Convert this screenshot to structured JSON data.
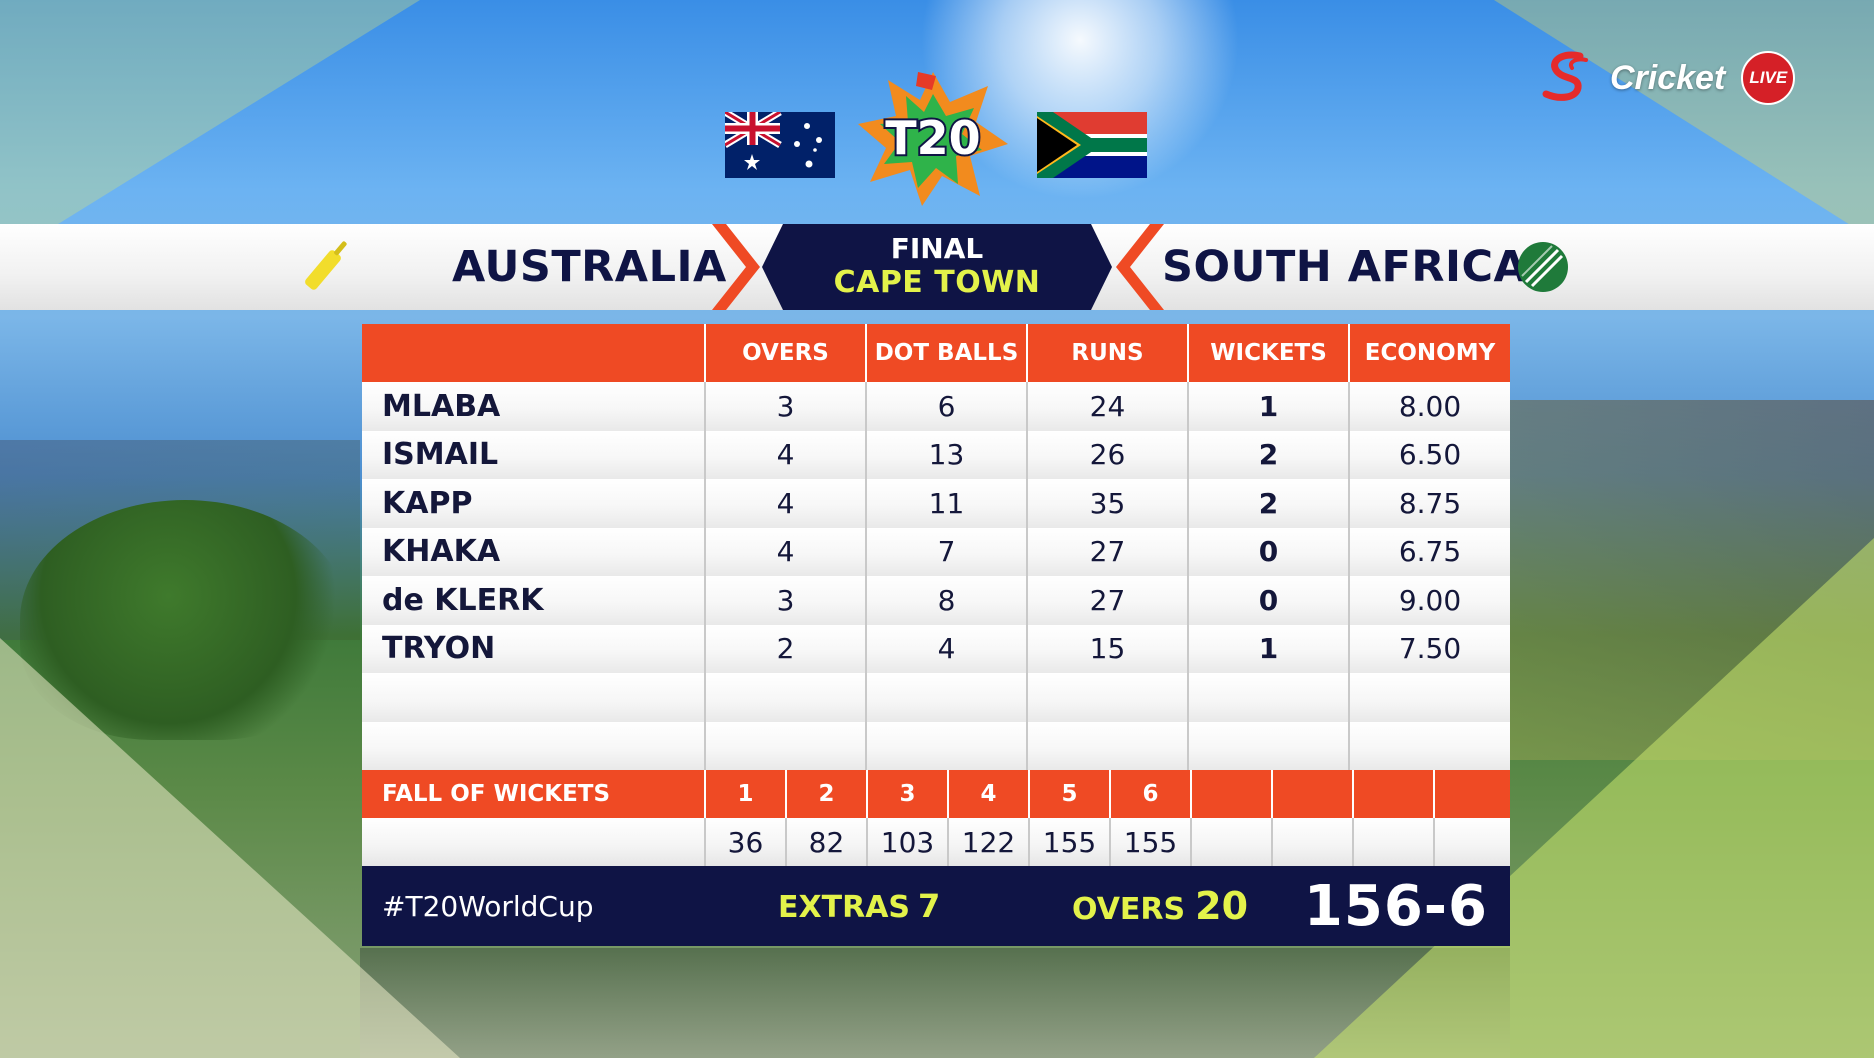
{
  "broadcaster": {
    "name": "Cricket",
    "live_label": "LIVE"
  },
  "match": {
    "stage": "FINAL",
    "venue": "CAPE TOWN",
    "batting_team": "AUSTRALIA",
    "bowling_team": "SOUTH AFRICA"
  },
  "table": {
    "headers": [
      "",
      "OVERS",
      "DOT BALLS",
      "RUNS",
      "WICKETS",
      "ECONOMY"
    ],
    "bowlers": [
      {
        "name": "MLABA",
        "overs": "3",
        "dot_balls": "6",
        "runs": "24",
        "wickets": "1",
        "economy": "8.00"
      },
      {
        "name": "ISMAIL",
        "overs": "4",
        "dot_balls": "13",
        "runs": "26",
        "wickets": "2",
        "economy": "6.50"
      },
      {
        "name": "KAPP",
        "overs": "4",
        "dot_balls": "11",
        "runs": "35",
        "wickets": "2",
        "economy": "8.75"
      },
      {
        "name": "KHAKA",
        "overs": "4",
        "dot_balls": "7",
        "runs": "27",
        "wickets": "0",
        "economy": "6.75"
      },
      {
        "name": "de KLERK",
        "overs": "3",
        "dot_balls": "8",
        "runs": "27",
        "wickets": "0",
        "economy": "9.00"
      },
      {
        "name": "TRYON",
        "overs": "2",
        "dot_balls": "4",
        "runs": "15",
        "wickets": "1",
        "economy": "7.50"
      },
      {
        "name": "",
        "overs": "",
        "dot_balls": "",
        "runs": "",
        "wickets": "",
        "economy": ""
      },
      {
        "name": "",
        "overs": "",
        "dot_balls": "",
        "runs": "",
        "wickets": "",
        "economy": ""
      }
    ]
  },
  "fall_of_wickets": {
    "label": "FALL OF WICKETS",
    "numbers": [
      "1",
      "2",
      "3",
      "4",
      "5",
      "6",
      "",
      "",
      "",
      ""
    ],
    "scores": [
      "36",
      "82",
      "103",
      "122",
      "155",
      "155",
      "",
      "",
      "",
      ""
    ]
  },
  "footer": {
    "hashtag": "#T20WorldCup",
    "extras_label": "EXTRAS",
    "extras_value": "7",
    "overs_label": "OVERS",
    "overs_value": "20",
    "total": "156-6"
  },
  "colors": {
    "navy": "#0f1445",
    "orange": "#ef4a24",
    "yellow": "#e3f24a"
  },
  "icons": [
    "supersport-logo",
    "australia-flag",
    "t20-world-cup-logo",
    "south-africa-flag",
    "cricket-bat-icon",
    "cricket-ball-icon"
  ]
}
